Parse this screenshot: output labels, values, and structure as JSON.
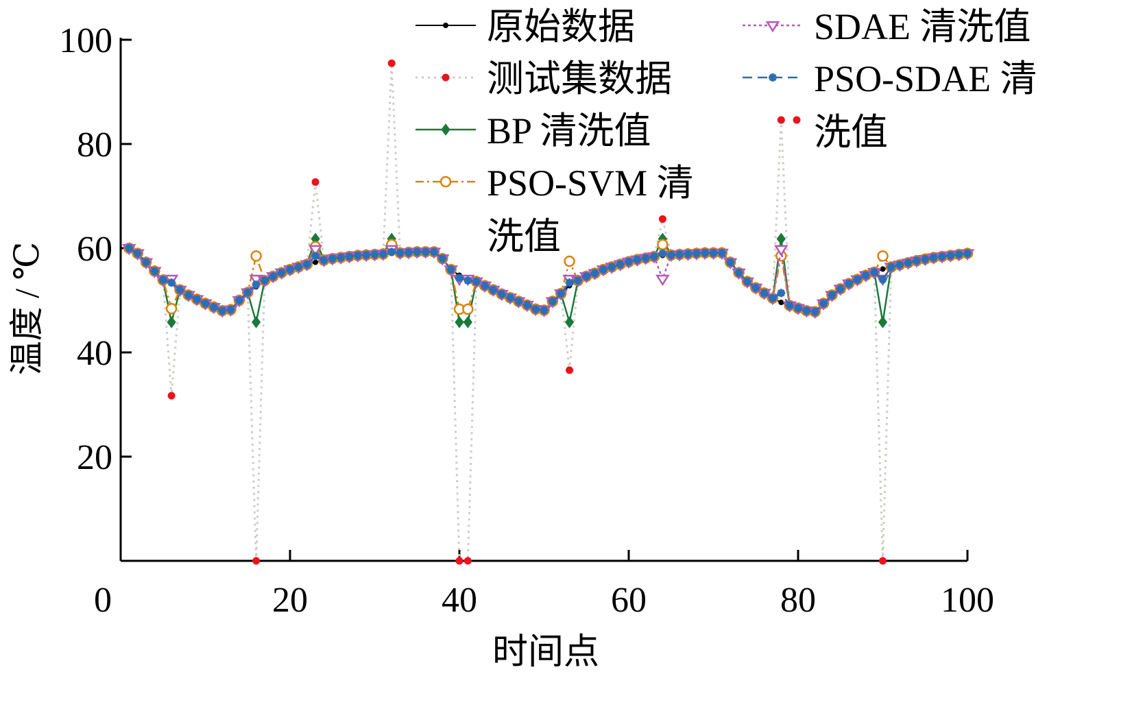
{
  "chart_data": {
    "type": "line",
    "xlabel": "时间点",
    "ylabel": "温度 / ℃",
    "xlim": [
      0,
      100
    ],
    "ylim": [
      0,
      100
    ],
    "xticks": [
      0,
      20,
      40,
      60,
      80,
      100
    ],
    "yticks": [
      20,
      40,
      60,
      80,
      100
    ],
    "grid": false,
    "legend_position": "top",
    "x": [
      1,
      2,
      3,
      4,
      5,
      6,
      7,
      8,
      9,
      10,
      11,
      12,
      13,
      14,
      15,
      16,
      17,
      18,
      19,
      20,
      21,
      22,
      23,
      24,
      25,
      26,
      27,
      28,
      29,
      30,
      31,
      32,
      33,
      34,
      35,
      36,
      37,
      38,
      39,
      40,
      41,
      42,
      43,
      44,
      45,
      46,
      47,
      48,
      49,
      50,
      51,
      52,
      53,
      54,
      55,
      56,
      57,
      58,
      59,
      60,
      61,
      62,
      63,
      64,
      65,
      66,
      67,
      68,
      69,
      70,
      71,
      72,
      73,
      74,
      75,
      76,
      77,
      78,
      79,
      80,
      81,
      82,
      83,
      84,
      85,
      86,
      87,
      88,
      89,
      90,
      91,
      92,
      93,
      94,
      95,
      96,
      97,
      98,
      99,
      100
    ],
    "series": [
      {
        "name": "原始数据",
        "color": "#000000",
        "values": [
          60.0,
          59.0,
          57.3,
          55.6,
          53.9,
          53.2,
          52.0,
          51.0,
          50.2,
          49.4,
          48.7,
          48.0,
          48.2,
          50.0,
          51.5,
          52.6,
          53.8,
          54.6,
          55.3,
          55.9,
          56.4,
          56.9,
          57.3,
          57.7,
          58.0,
          58.2,
          58.4,
          58.6,
          58.7,
          58.8,
          58.9,
          59.0,
          59.1,
          59.2,
          59.3,
          59.3,
          59.3,
          58.0,
          55.9,
          54.8,
          53.8,
          53.6,
          52.8,
          52.0,
          51.2,
          50.5,
          49.8,
          49.1,
          48.3,
          48.1,
          49.8,
          51.3,
          52.8,
          53.8,
          54.6,
          55.2,
          55.9,
          56.4,
          56.9,
          57.4,
          57.8,
          58.1,
          58.4,
          58.6,
          58.7,
          58.8,
          58.9,
          59.0,
          59.1,
          59.1,
          59.1,
          57.3,
          55.3,
          53.6,
          52.4,
          51.4,
          50.4,
          49.6,
          49.0,
          48.5,
          48.0,
          47.8,
          49.4,
          51.0,
          52.2,
          53.2,
          54.0,
          54.8,
          55.4,
          56.0,
          56.4,
          56.8,
          57.2,
          57.6,
          57.9,
          58.2,
          58.4,
          58.6,
          58.8,
          59.0
        ]
      },
      {
        "name": "测试集数据",
        "color": "#e8141c",
        "values": [
          60.0,
          59.0,
          57.3,
          55.6,
          53.9,
          31.7,
          52.0,
          51.0,
          50.2,
          49.4,
          48.7,
          48.0,
          48.2,
          50.0,
          51.5,
          0.0,
          53.8,
          54.6,
          55.3,
          55.9,
          56.4,
          56.9,
          72.7,
          57.7,
          58.0,
          58.2,
          58.4,
          58.6,
          58.7,
          58.8,
          58.9,
          95.5,
          59.1,
          59.2,
          59.3,
          59.3,
          59.3,
          58.0,
          55.9,
          0.0,
          0.0,
          53.6,
          52.8,
          52.0,
          51.2,
          50.5,
          49.8,
          49.1,
          48.3,
          48.1,
          49.8,
          51.3,
          36.6,
          53.8,
          54.6,
          55.2,
          55.9,
          56.4,
          56.9,
          57.4,
          57.8,
          58.1,
          58.4,
          65.6,
          58.7,
          58.8,
          58.9,
          59.0,
          59.1,
          59.1,
          59.1,
          57.3,
          55.3,
          53.6,
          52.4,
          51.4,
          50.4,
          84.6,
          49.0,
          48.5,
          48.0,
          47.8,
          49.4,
          51.0,
          52.2,
          53.2,
          54.0,
          54.8,
          55.4,
          0.0,
          56.4,
          56.8,
          57.2,
          57.6,
          57.9,
          58.2,
          58.4,
          58.6,
          58.8,
          59.0
        ]
      },
      {
        "name": "BP 清洗值",
        "color": "#1a7a3a",
        "values": [
          60.0,
          59.0,
          57.3,
          55.6,
          53.9,
          45.8,
          52.0,
          51.0,
          50.2,
          49.4,
          48.7,
          48.0,
          48.2,
          50.0,
          51.5,
          45.8,
          53.8,
          54.6,
          55.3,
          55.9,
          56.4,
          56.9,
          61.8,
          57.7,
          58.0,
          58.2,
          58.4,
          58.6,
          58.7,
          58.8,
          58.9,
          61.8,
          59.1,
          59.2,
          59.3,
          59.3,
          59.3,
          58.0,
          55.9,
          45.8,
          45.8,
          53.6,
          52.8,
          52.0,
          51.2,
          50.5,
          49.8,
          49.1,
          48.3,
          48.1,
          49.8,
          51.3,
          45.8,
          53.8,
          54.6,
          55.2,
          55.9,
          56.4,
          56.9,
          57.4,
          57.8,
          58.1,
          58.4,
          61.8,
          58.7,
          58.8,
          58.9,
          59.0,
          59.1,
          59.1,
          59.1,
          57.3,
          55.3,
          53.6,
          52.4,
          51.4,
          50.4,
          61.8,
          49.0,
          48.5,
          48.0,
          47.8,
          49.4,
          51.0,
          52.2,
          53.2,
          54.0,
          54.8,
          55.4,
          45.8,
          56.4,
          56.8,
          57.2,
          57.6,
          57.9,
          58.2,
          58.4,
          58.6,
          58.8,
          59.0
        ]
      },
      {
        "name": "PSO-SVM 清洗值",
        "color": "#d9820f",
        "values": [
          60.0,
          59.0,
          57.3,
          55.6,
          53.9,
          48.4,
          52.0,
          51.0,
          50.2,
          49.4,
          48.7,
          48.0,
          48.2,
          50.0,
          51.5,
          58.5,
          53.8,
          54.6,
          55.3,
          55.9,
          56.4,
          56.9,
          60.3,
          57.7,
          58.0,
          58.2,
          58.4,
          58.6,
          58.7,
          58.8,
          58.9,
          60.7,
          59.1,
          59.2,
          59.3,
          59.3,
          59.3,
          58.0,
          55.9,
          48.3,
          48.3,
          53.6,
          52.8,
          52.0,
          51.2,
          50.5,
          49.8,
          49.1,
          48.3,
          48.1,
          49.8,
          51.3,
          57.5,
          53.8,
          54.6,
          55.2,
          55.9,
          56.4,
          56.9,
          57.4,
          57.8,
          58.1,
          58.4,
          60.7,
          58.7,
          58.8,
          58.9,
          59.0,
          59.1,
          59.1,
          59.1,
          57.3,
          55.3,
          53.6,
          52.4,
          51.4,
          50.4,
          58.5,
          49.0,
          48.5,
          48.0,
          47.8,
          49.4,
          51.0,
          52.2,
          53.2,
          54.0,
          54.8,
          55.4,
          58.5,
          56.4,
          56.8,
          57.2,
          57.6,
          57.9,
          58.2,
          58.4,
          58.6,
          58.8,
          59.0
        ]
      },
      {
        "name": "SDAE 清洗值",
        "color": "#b05cb4",
        "values": [
          60.0,
          59.0,
          57.3,
          55.6,
          53.9,
          54.1,
          52.0,
          51.0,
          50.2,
          49.4,
          48.7,
          48.0,
          48.2,
          50.0,
          51.5,
          54.1,
          53.8,
          54.6,
          55.3,
          55.9,
          56.4,
          56.9,
          59.8,
          57.7,
          58.0,
          58.2,
          58.4,
          58.6,
          58.7,
          58.8,
          58.9,
          59.8,
          59.1,
          59.2,
          59.3,
          59.3,
          59.3,
          58.0,
          55.9,
          54.1,
          54.1,
          53.6,
          52.8,
          52.0,
          51.2,
          50.5,
          49.8,
          49.1,
          48.3,
          48.1,
          49.8,
          51.3,
          54.1,
          53.8,
          54.6,
          55.2,
          55.9,
          56.4,
          56.9,
          57.4,
          57.8,
          58.1,
          58.4,
          54.1,
          58.7,
          58.8,
          58.9,
          59.0,
          59.1,
          59.1,
          59.1,
          57.3,
          55.3,
          53.6,
          52.4,
          51.4,
          50.4,
          59.8,
          49.0,
          48.5,
          48.0,
          47.8,
          49.4,
          51.0,
          52.2,
          53.2,
          54.0,
          54.8,
          55.4,
          54.1,
          56.4,
          56.8,
          57.2,
          57.6,
          57.9,
          58.2,
          58.4,
          58.6,
          58.8,
          59.0
        ]
      },
      {
        "name": "PSO-SDAE 清洗值",
        "color": "#2a6fb4",
        "values": [
          60.0,
          59.0,
          57.3,
          55.6,
          53.9,
          53.4,
          52.0,
          51.0,
          50.2,
          49.4,
          48.7,
          48.0,
          48.2,
          50.0,
          51.5,
          53.0,
          53.8,
          54.6,
          55.3,
          55.9,
          56.4,
          56.9,
          58.5,
          57.7,
          58.0,
          58.2,
          58.4,
          58.6,
          58.7,
          58.8,
          58.9,
          59.3,
          59.1,
          59.2,
          59.3,
          59.3,
          59.3,
          58.0,
          55.9,
          54.3,
          53.8,
          53.6,
          52.8,
          52.0,
          51.2,
          50.5,
          49.8,
          49.1,
          48.3,
          48.1,
          49.8,
          51.3,
          53.4,
          53.8,
          54.6,
          55.2,
          55.9,
          56.4,
          56.9,
          57.4,
          57.8,
          58.1,
          58.4,
          59.0,
          58.7,
          58.8,
          58.9,
          59.0,
          59.1,
          59.1,
          59.1,
          57.3,
          55.3,
          53.6,
          52.4,
          51.4,
          50.4,
          51.4,
          49.0,
          48.5,
          48.0,
          47.8,
          49.4,
          51.0,
          52.2,
          53.2,
          54.0,
          54.8,
          55.4,
          54.0,
          56.4,
          56.8,
          57.2,
          57.6,
          57.9,
          58.2,
          58.4,
          58.6,
          58.8,
          59.0
        ]
      }
    ]
  },
  "legend": {
    "items": [
      {
        "label_lines": [
          "原始数据"
        ]
      },
      {
        "label_lines": [
          "测试集数据"
        ]
      },
      {
        "label_lines": [
          "BP 清洗值"
        ]
      },
      {
        "label_lines": [
          "PSO-SVM 清",
          "洗值"
        ]
      },
      {
        "label_lines": [
          "SDAE 清洗值"
        ]
      },
      {
        "label_lines": [
          "PSO-SDAE 清",
          "洗值"
        ]
      }
    ]
  }
}
